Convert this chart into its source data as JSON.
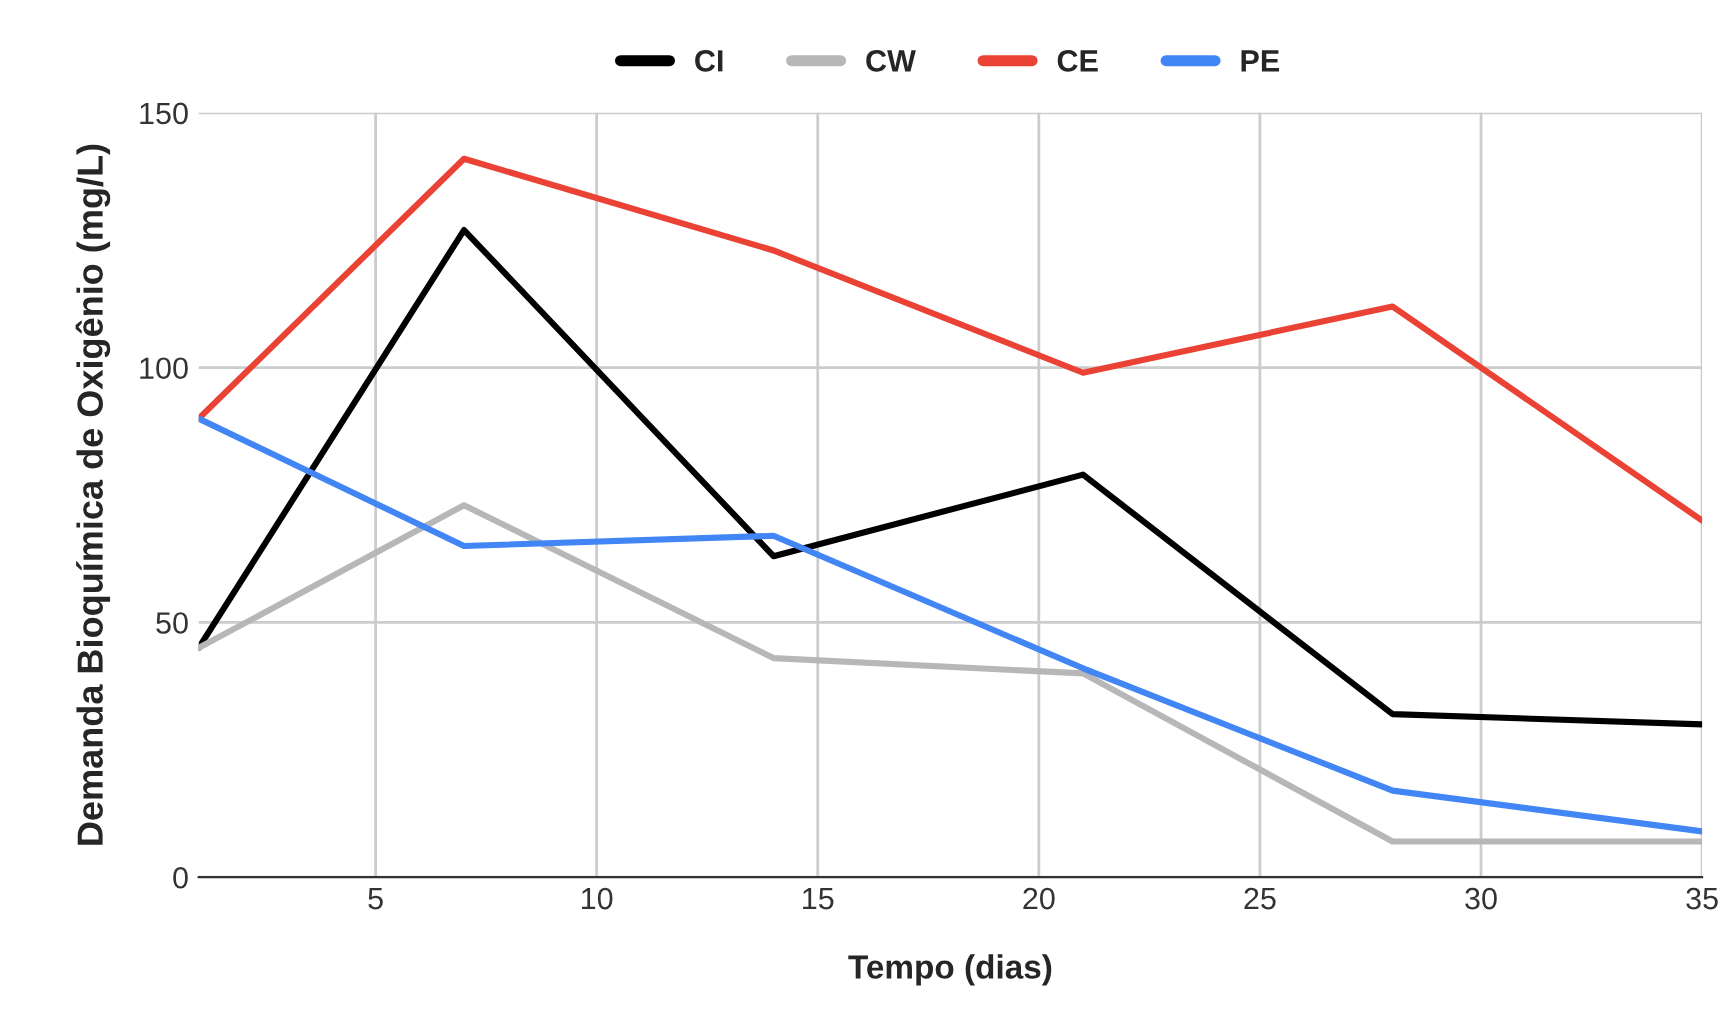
{
  "chart_data": {
    "type": "line",
    "xlabel": "Tempo (dias)",
    "ylabel": "Demanda Bioquímica de Oxigênio (mg/L)",
    "x": [
      1,
      7,
      14,
      21,
      28,
      35
    ],
    "series": [
      {
        "name": "CI",
        "color": "#000000",
        "values": [
          45,
          127,
          63,
          79,
          32,
          30
        ]
      },
      {
        "name": "CW",
        "color": "#b7b7b7",
        "values": [
          45,
          73,
          43,
          40,
          7,
          7
        ]
      },
      {
        "name": "CE",
        "color": "#ea4335",
        "values": [
          90,
          141,
          123,
          99,
          112,
          70
        ]
      },
      {
        "name": "PE",
        "color": "#4285f4",
        "values": [
          90,
          65,
          67,
          41,
          17,
          9
        ]
      }
    ],
    "xlim": [
      1,
      35
    ],
    "xticks": [
      5,
      10,
      15,
      20,
      25,
      30,
      35
    ],
    "ylim": [
      0,
      150
    ],
    "yticks": [
      0,
      50,
      100,
      150
    ],
    "grid": true,
    "legend": "top",
    "marker": "none",
    "line_style": "solid"
  }
}
